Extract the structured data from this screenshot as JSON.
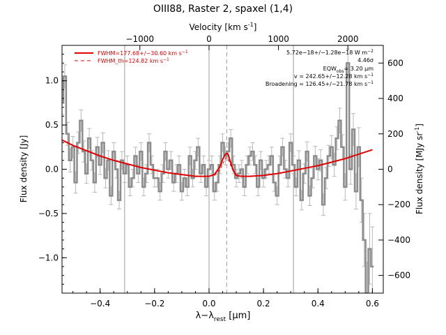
{
  "chart_data": {
    "type": "line",
    "title": "OIII88, Raster 2, spaxel (1,4)",
    "top_axis_label": "Velocity [km s",
    "top_axis_label_sup": "-1",
    "top_axis_label_end": "]",
    "xlabel": "λ−λ",
    "xlabel_sub": "rest",
    "xlabel_end": " [μm]",
    "ylabel": "Flux density [Jy]",
    "y2label": "Flux density [MJy sr",
    "y2label_sup": "-1",
    "y2label_end": "]",
    "xlim": [
      -0.54,
      0.64
    ],
    "ylim": [
      -1.4,
      1.4
    ],
    "y2lim": [
      -700,
      700
    ],
    "x_ticks": [
      -0.4,
      -0.2,
      0.0,
      0.2,
      0.4,
      0.6
    ],
    "x_tick_labels": [
      "−0.4",
      "−0.2",
      "0.0",
      "0.2",
      "0.4",
      "0.6"
    ],
    "y_ticks": [
      1.0,
      0.5,
      0.0,
      -0.5,
      -1.0
    ],
    "y_tick_labels": [
      "1.0",
      "0.5",
      "0.0",
      "−0.5",
      "−1.0"
    ],
    "y2_ticks": [
      600,
      400,
      200,
      0,
      -200,
      -400,
      -600
    ],
    "y2_tick_labels": [
      "600",
      "400",
      "200",
      "0",
      "−200",
      "−400",
      "−600"
    ],
    "velocity_ticks": [
      -1000,
      0,
      1000,
      2000
    ],
    "velocity_tick_labels": [
      "−1000",
      "0",
      "1000",
      "2000"
    ],
    "velocity_tick_x": [
      -0.254,
      0.0,
      0.255,
      0.51
    ],
    "vertical_lines_x": [
      -0.31,
      0.0,
      0.31
    ],
    "line_center_x": 0.065,
    "legend": {
      "placement": "top-left",
      "entries": [
        {
          "label": "FWHM=177.68+/−30.60 km s",
          "sup": "−1",
          "style": "solid"
        },
        {
          "label": "FWHM_th=124.82 km s",
          "sup": "−1",
          "style": "dashed"
        }
      ]
    },
    "annotations": [
      "5.72e−18+/−1.28e−18 W m",
      "4.46σ",
      "EQW",
      "= 3.20 μm",
      "v = 242.65+/−12.28 km s",
      "Broadening = 126.45+/−21.78 km s"
    ],
    "annotation_sups": [
      "−2",
      "obs",
      "−1",
      "−1"
    ],
    "series": [
      {
        "role": "spectrum",
        "style": "steps-with-errorbars",
        "x": [
          -0.54,
          -0.53,
          -0.52,
          -0.51,
          -0.5,
          -0.49,
          -0.48,
          -0.47,
          -0.46,
          -0.45,
          -0.44,
          -0.43,
          -0.42,
          -0.41,
          -0.4,
          -0.39,
          -0.38,
          -0.37,
          -0.36,
          -0.35,
          -0.34,
          -0.33,
          -0.32,
          -0.31,
          -0.3,
          -0.29,
          -0.28,
          -0.27,
          -0.26,
          -0.25,
          -0.24,
          -0.23,
          -0.22,
          -0.21,
          -0.2,
          -0.19,
          -0.18,
          -0.17,
          -0.16,
          -0.15,
          -0.14,
          -0.13,
          -0.12,
          -0.11,
          -0.1,
          -0.09,
          -0.08,
          -0.07,
          -0.06,
          -0.05,
          -0.04,
          -0.03,
          -0.02,
          -0.01,
          0.0,
          0.01,
          0.02,
          0.03,
          0.04,
          0.05,
          0.06,
          0.07,
          0.08,
          0.09,
          0.1,
          0.11,
          0.12,
          0.13,
          0.14,
          0.15,
          0.16,
          0.17,
          0.18,
          0.19,
          0.2,
          0.21,
          0.22,
          0.23,
          0.24,
          0.25,
          0.26,
          0.27,
          0.28,
          0.29,
          0.3,
          0.31,
          0.32,
          0.33,
          0.34,
          0.35,
          0.36,
          0.37,
          0.38,
          0.39,
          0.4,
          0.41,
          0.42,
          0.43,
          0.44,
          0.45,
          0.46,
          0.47,
          0.48,
          0.49,
          0.5,
          0.51,
          0.52,
          0.53,
          0.54,
          0.55,
          0.56,
          0.57,
          0.58,
          0.59,
          0.6
        ],
        "y": [
          0.75,
          1.05,
          0.4,
          0.1,
          0.25,
          -0.15,
          0.3,
          0.55,
          0.2,
          -0.05,
          0.35,
          0.1,
          -0.15,
          0.25,
          0.05,
          0.3,
          -0.1,
          0.1,
          -0.3,
          0.2,
          0.0,
          -0.35,
          0.1,
          -0.05,
          0.05,
          -0.2,
          -0.1,
          0.15,
          -0.05,
          0.2,
          -0.2,
          -0.05,
          0.3,
          0.05,
          -0.1,
          -0.1,
          -0.25,
          -0.05,
          0.2,
          0.0,
          0.1,
          -0.15,
          -0.05,
          0.05,
          -0.25,
          -0.1,
          -0.2,
          0.15,
          -0.1,
          0.1,
          0.25,
          -0.05,
          0.05,
          -0.2,
          0.0,
          0.05,
          -0.25,
          -0.15,
          0.05,
          0.3,
          0.15,
          0.2,
          0.35,
          0.05,
          -0.1,
          -0.05,
          0.0,
          -0.2,
          0.05,
          0.15,
          0.2,
          0.05,
          -0.2,
          0.1,
          -0.1,
          0.0,
          0.05,
          0.15,
          -0.15,
          -0.3,
          0.05,
          0.25,
          0.0,
          -0.1,
          0.3,
          0.05,
          -0.2,
          0.1,
          -0.35,
          -0.05,
          0.2,
          -0.3,
          -0.1,
          0.15,
          0.0,
          0.1,
          -0.4,
          -0.1,
          0.15,
          0.25,
          0.05,
          0.35,
          0.55,
          0.25,
          -0.2,
          1.2,
          0.0,
          0.45,
          -0.25,
          0.25,
          -0.35,
          -0.8,
          -1.4,
          -0.9,
          -1.1
        ],
        "err": [
          0.13,
          0.13,
          0.13,
          0.13,
          0.12,
          0.12,
          0.12,
          0.12,
          0.12,
          0.11,
          0.11,
          0.11,
          0.11,
          0.11,
          0.11,
          0.11,
          0.11,
          0.11,
          0.1,
          0.1,
          0.1,
          0.1,
          0.1,
          0.1,
          0.1,
          0.1,
          0.1,
          0.1,
          0.1,
          0.1,
          0.1,
          0.1,
          0.1,
          0.1,
          0.1,
          0.1,
          0.1,
          0.1,
          0.1,
          0.1,
          0.1,
          0.1,
          0.1,
          0.1,
          0.1,
          0.1,
          0.1,
          0.1,
          0.1,
          0.1,
          0.1,
          0.1,
          0.1,
          0.1,
          0.1,
          0.1,
          0.1,
          0.1,
          0.1,
          0.1,
          0.1,
          0.1,
          0.1,
          0.1,
          0.1,
          0.1,
          0.1,
          0.1,
          0.1,
          0.1,
          0.1,
          0.1,
          0.1,
          0.1,
          0.1,
          0.1,
          0.1,
          0.1,
          0.1,
          0.1,
          0.1,
          0.1,
          0.1,
          0.1,
          0.1,
          0.1,
          0.1,
          0.11,
          0.11,
          0.11,
          0.11,
          0.11,
          0.11,
          0.11,
          0.12,
          0.12,
          0.12,
          0.12,
          0.12,
          0.13,
          0.13,
          0.13,
          0.14,
          0.14,
          0.15,
          0.16,
          0.17,
          0.18,
          0.2,
          0.22,
          0.25,
          0.3,
          0.35,
          0.4,
          0.45
        ]
      },
      {
        "role": "fit",
        "style": "solid-red",
        "x": [
          -0.54,
          -0.5,
          -0.45,
          -0.4,
          -0.35,
          -0.3,
          -0.25,
          -0.2,
          -0.15,
          -0.1,
          -0.05,
          0.0,
          0.02,
          0.04,
          0.05,
          0.06,
          0.065,
          0.07,
          0.08,
          0.09,
          0.1,
          0.12,
          0.15,
          0.2,
          0.25,
          0.3,
          0.35,
          0.4,
          0.45,
          0.5,
          0.55,
          0.6
        ],
        "y": [
          0.33,
          0.27,
          0.21,
          0.15,
          0.1,
          0.06,
          0.02,
          -0.01,
          -0.04,
          -0.06,
          -0.08,
          -0.08,
          -0.06,
          0.03,
          0.11,
          0.17,
          0.18,
          0.17,
          0.07,
          -0.02,
          -0.07,
          -0.08,
          -0.08,
          -0.07,
          -0.05,
          -0.02,
          0.01,
          0.04,
          0.08,
          0.12,
          0.17,
          0.22
        ]
      },
      {
        "role": "fit-thermal",
        "style": "dashed-red",
        "x": [
          0.02,
          0.04,
          0.05,
          0.06,
          0.065,
          0.07,
          0.08,
          0.09,
          0.11
        ],
        "y": [
          -0.07,
          -0.01,
          0.06,
          0.12,
          0.13,
          0.12,
          0.04,
          -0.03,
          -0.08
        ]
      }
    ]
  }
}
